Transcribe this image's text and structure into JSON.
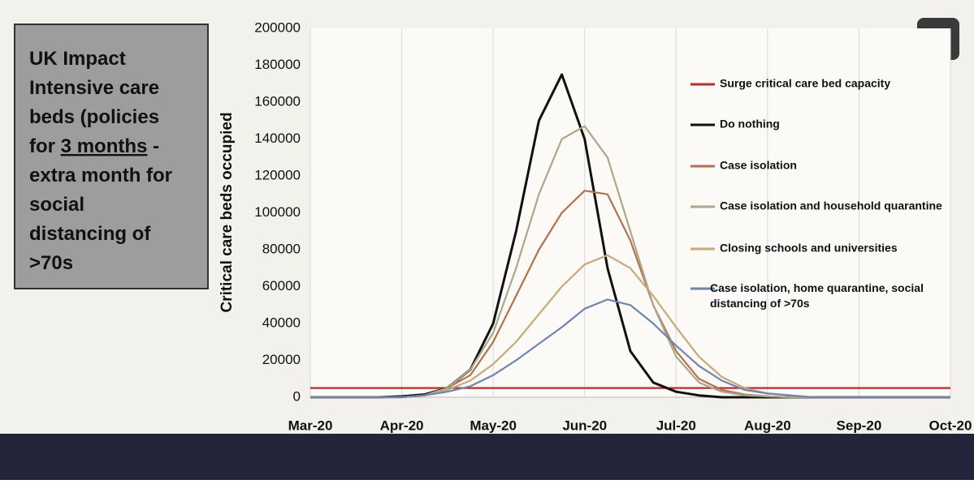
{
  "panel": {
    "lines": [
      "UK Impact",
      "Intensive care",
      "beds (policies",
      "for ",
      "3 months",
      " -",
      "extra month for",
      "social",
      "distancing of",
      ">70s"
    ]
  },
  "chart_data": {
    "type": "line",
    "ylabel": "Critical care beds occupied",
    "categories": [
      "Mar-20",
      null,
      null,
      null,
      "Apr-20",
      null,
      null,
      null,
      "May-20",
      null,
      null,
      null,
      "Jun-20",
      null,
      null,
      null,
      "Jul-20",
      null,
      null,
      null,
      "Aug-20",
      null,
      null,
      null,
      "Sep-20",
      null,
      null,
      null,
      "Oct-20"
    ],
    "ylim": [
      0,
      200000
    ],
    "yticks": [
      0,
      20000,
      40000,
      60000,
      80000,
      100000,
      120000,
      140000,
      160000,
      180000,
      200000
    ],
    "grid": "x",
    "series": [
      {
        "name": "Surge critical care bed capacity",
        "color": "#c0282a",
        "values": [
          5000,
          5000,
          5000,
          5000,
          5000,
          5000,
          5000,
          5000,
          5000,
          5000,
          5000,
          5000,
          5000,
          5000,
          5000,
          5000,
          5000,
          5000,
          5000,
          5000,
          5000,
          5000,
          5000,
          5000,
          5000,
          5000,
          5000,
          5000,
          5000
        ]
      },
      {
        "name": "Do nothing",
        "color": "#111111",
        "values": [
          0,
          0,
          0,
          0,
          500,
          1500,
          5000,
          15000,
          40000,
          90000,
          150000,
          175000,
          140000,
          70000,
          25000,
          8000,
          3000,
          1000,
          0,
          0,
          0,
          0,
          0,
          0,
          0,
          0,
          0,
          0,
          0
        ]
      },
      {
        "name": "Case isolation",
        "color": "#b8704a",
        "values": [
          0,
          0,
          0,
          0,
          0,
          1000,
          5000,
          12000,
          30000,
          55000,
          80000,
          100000,
          112000,
          110000,
          85000,
          50000,
          25000,
          10000,
          4000,
          1500,
          500,
          0,
          0,
          0,
          0,
          0,
          0,
          0,
          0
        ]
      },
      {
        "name": "Case isolation and household quarantine",
        "color": "#a9a88a",
        "values": [
          0,
          0,
          0,
          0,
          0,
          1000,
          5000,
          15000,
          35000,
          70000,
          110000,
          140000,
          147000,
          130000,
          90000,
          50000,
          22000,
          8000,
          3000,
          1000,
          500,
          0,
          0,
          0,
          0,
          0,
          0,
          0,
          0
        ]
      },
      {
        "name": "Closing schools and universities",
        "color": "#c9a878",
        "values": [
          0,
          0,
          0,
          0,
          0,
          1000,
          4000,
          9000,
          18000,
          30000,
          45000,
          60000,
          72000,
          77000,
          70000,
          55000,
          38000,
          22000,
          11000,
          5000,
          2000,
          1000,
          0,
          0,
          0,
          0,
          0,
          0,
          0
        ]
      },
      {
        "name": "Case isolation, home quarantine, social distancing of >70s",
        "color": "#6b86b0",
        "values": [
          0,
          0,
          0,
          0,
          0,
          1000,
          3000,
          6000,
          12000,
          20000,
          29000,
          38000,
          48000,
          53000,
          50000,
          40000,
          28000,
          17000,
          9000,
          4000,
          2000,
          1000,
          0,
          0,
          0,
          0,
          0,
          0,
          0
        ]
      }
    ]
  }
}
